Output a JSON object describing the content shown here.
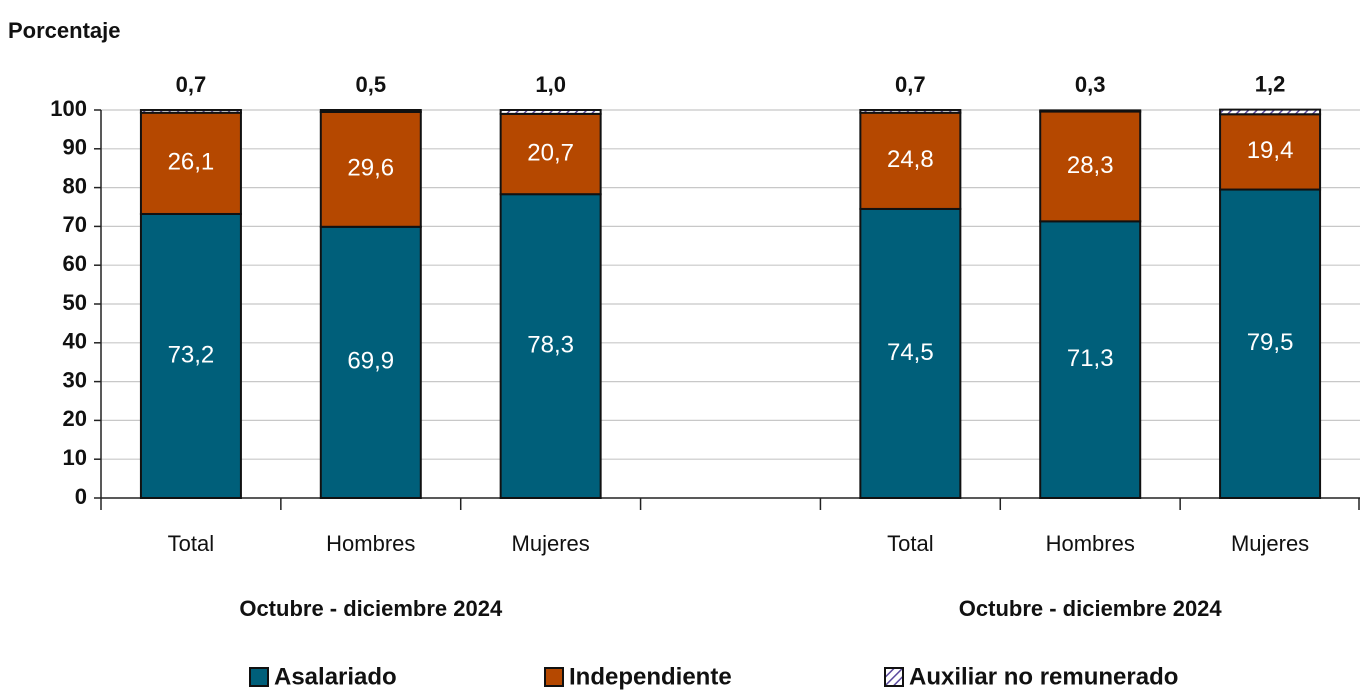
{
  "chart_data": {
    "type": "bar",
    "stacked": true,
    "y_axis_label": "Porcentaje",
    "categories": [
      "Total",
      "Hombres",
      "Mujeres",
      null,
      "Total",
      "Hombres",
      "Mujeres"
    ],
    "group_labels": [
      "Octubre - diciembre 2024",
      "Octubre - diciembre 2024"
    ],
    "series": [
      {
        "name": "Asalariado",
        "color": "#005f7a",
        "values": [
          73.2,
          69.9,
          78.3,
          null,
          74.5,
          71.3,
          79.5
        ],
        "value_labels": [
          "73,2",
          "69,9",
          "78,3",
          null,
          "74,5",
          "71,3",
          "79,5"
        ]
      },
      {
        "name": "Independiente",
        "color": "#b54800",
        "values": [
          26.1,
          29.6,
          20.7,
          null,
          24.8,
          28.3,
          19.4
        ],
        "value_labels": [
          "26,1",
          "29,6",
          "20,7",
          null,
          "24,8",
          "28,3",
          "19,4"
        ]
      },
      {
        "name": "Auxiliar no remunerado",
        "color": "#5b4a9e",
        "pattern": "hatch",
        "values": [
          0.7,
          0.5,
          1.0,
          null,
          0.7,
          0.3,
          1.2
        ],
        "value_labels": [
          "0,7",
          "0,5",
          "1,0",
          null,
          "0,7",
          "0,3",
          "1,2"
        ]
      }
    ],
    "ylim": [
      0,
      100
    ],
    "yticks": [
      0,
      10,
      20,
      30,
      40,
      50,
      60,
      70,
      80,
      90,
      100
    ],
    "grid": true
  }
}
